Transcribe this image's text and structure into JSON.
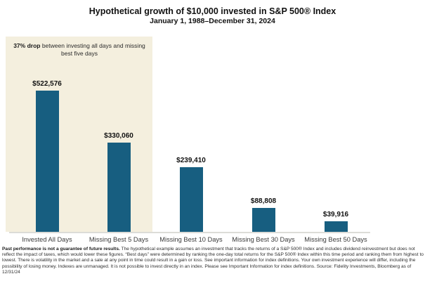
{
  "header": {
    "title": "Hypothetical growth of $10,000 invested in S&P 500® Index",
    "subtitle": "January 1, 1988–December 31, 2024"
  },
  "annotation": {
    "bold_lead": "37% drop",
    "rest": " between investing all days and missing best five days"
  },
  "chart_data": {
    "type": "bar",
    "title": "Hypothetical growth of $10,000 invested in S&P 500® Index",
    "subtitle": "January 1, 1988–December 31, 2024",
    "categories": [
      "Invested All Days",
      "Missing Best 5 Days",
      "Missing Best 10 Days",
      "Missing Best 30 Days",
      "Missing Best 50 Days"
    ],
    "values": [
      522576,
      330060,
      239410,
      88808,
      39916
    ],
    "value_labels": [
      "$522,576",
      "$330,060",
      "$239,410",
      "$88,808",
      "$39,916"
    ],
    "xlabel": "",
    "ylabel": "",
    "ylim": [
      0,
      560000
    ],
    "grid": false,
    "legend": false,
    "bar_color": "#175e80",
    "highlight_region_color": "#f4efde",
    "highlight_region_categories": [
      "Invested All Days",
      "Missing Best 5 Days"
    ],
    "annotation_text": "37% drop between investing all days and missing best five days"
  },
  "footer": {
    "bold_lead": "Past performance is not a guarantee of future results.",
    "body": " The hypothetical example assumes an investment that tracks the returns of a S&P 500® Index and includes dividend reinvestment but does not reflect the impact of taxes, which would lower these figures. “Best days” were determined by ranking the one-day total returns for the S&P 500® Index within this time period and ranking them from highest to lowest. There is volatility in the market and a sale at any point in time could result in a gain or loss. See important information for index definitions. Your own investment experience will differ, including the possibility of losing money. Indexes are unmanaged. It is not possible to invest directly in an index. Please see Important Information for index definitions. Source: Fidelity Investments, Bloomberg as of 12/31/24"
  }
}
